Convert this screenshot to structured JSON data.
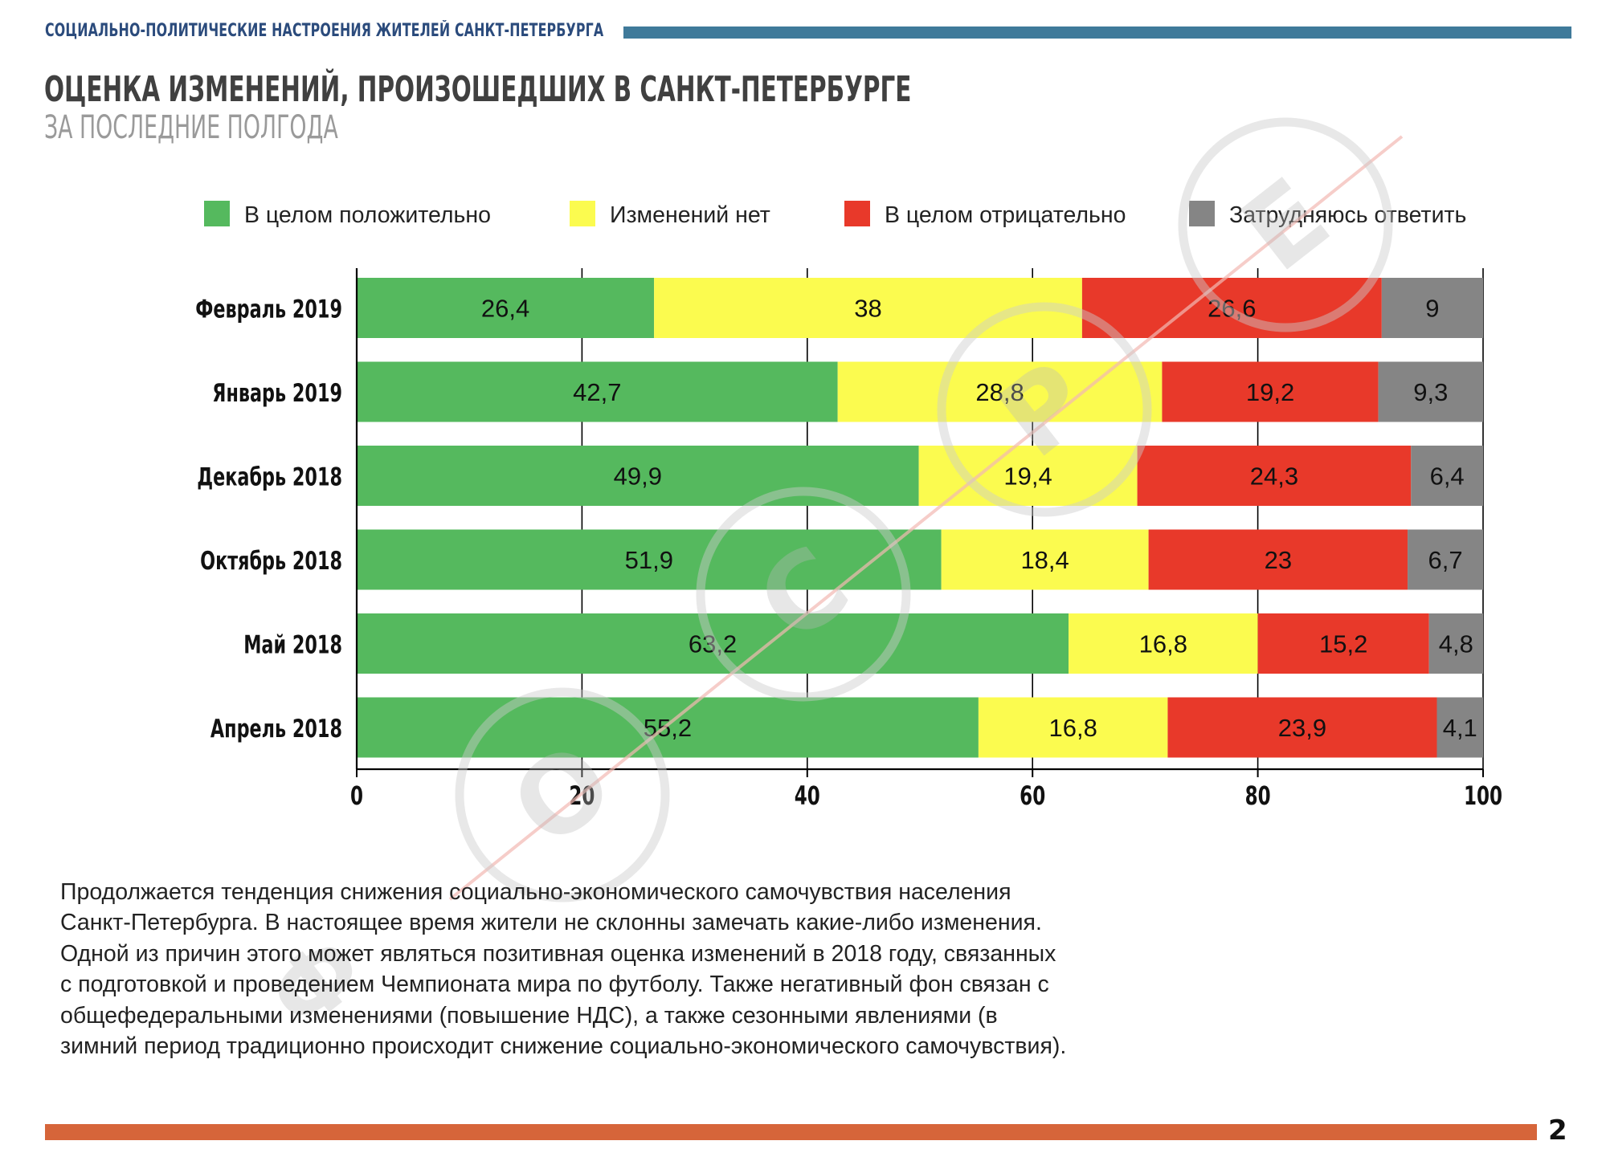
{
  "header": {
    "subject": "СОЦИАЛЬНО-ПОЛИТИЧЕСКИЕ НАСТРОЕНИЯ ЖИТЕЛЕЙ САНКТ-ПЕТЕРБУРГА",
    "title": "ОЦЕНКА ИЗМЕНЕНИЙ, ПРОИЗОШЕДШИХ В САНКТ-ПЕТЕРБУРГЕ",
    "subtitle": "ЗА ПОСЛЕДНИЕ ПОЛГОДА"
  },
  "colors": {
    "header_bar": "#3f7a9a",
    "footer_bar": "#d6653a",
    "positive": "#55b95e",
    "no_change": "#fbfb4f",
    "negative": "#e8392a",
    "dont_know": "#858585"
  },
  "watermark_letters": [
    "Ф",
    "О",
    "С",
    "Р",
    "Е"
  ],
  "chart_data": {
    "type": "bar",
    "orientation": "horizontal",
    "stacked": true,
    "categories": [
      "Февраль 2019",
      "Январь 2019",
      "Декабрь 2018",
      "Октябрь 2018",
      "Май 2018",
      "Апрель 2018"
    ],
    "series": [
      {
        "name": "В целом положительно",
        "color": "#55b95e",
        "values": [
          26.4,
          42.7,
          49.9,
          51.9,
          63.2,
          55.2
        ],
        "labels": [
          "26,4",
          "42,7",
          "49,9",
          "51,9",
          "63,2",
          "55,2"
        ]
      },
      {
        "name": "Изменений нет",
        "color": "#fbfb4f",
        "values": [
          38,
          28.8,
          19.4,
          18.4,
          16.8,
          16.8
        ],
        "labels": [
          "38",
          "28,8",
          "19,4",
          "18,4",
          "16,8",
          "16,8"
        ]
      },
      {
        "name": "В целом отрицательно",
        "color": "#e8392a",
        "values": [
          26.6,
          19.2,
          24.3,
          23,
          15.2,
          23.9
        ],
        "labels": [
          "26,6",
          "19,2",
          "24,3",
          "23",
          "15,2",
          "23,9"
        ]
      },
      {
        "name": "Затрудняюсь ответить",
        "color": "#858585",
        "values": [
          9,
          9.3,
          6.4,
          6.7,
          4.8,
          4.1
        ],
        "labels": [
          "9",
          "9,3",
          "6,4",
          "6,7",
          "4,8",
          "4,1"
        ]
      }
    ],
    "xlim": [
      0,
      100
    ],
    "xticks": [
      0,
      20,
      40,
      60,
      80,
      100
    ],
    "grid": true,
    "legend_position": "top"
  },
  "body_text": "Продолжается тенденция снижения социально-экономического самочувствия населения Санкт-Петербурга. В настоящее время жители не склонны замечать какие-либо изменения. Одной из причин этого может являться позитивная оценка изменений в 2018 году, связанных с подготовкой и проведением Чемпионата мира по футболу. Также негативный фон связан с общефедеральными изменениями (повышение НДС), а также сезонными явлениями (в зимний период традиционно происходит снижение социально-экономического самочувствия).",
  "page_number": "2"
}
